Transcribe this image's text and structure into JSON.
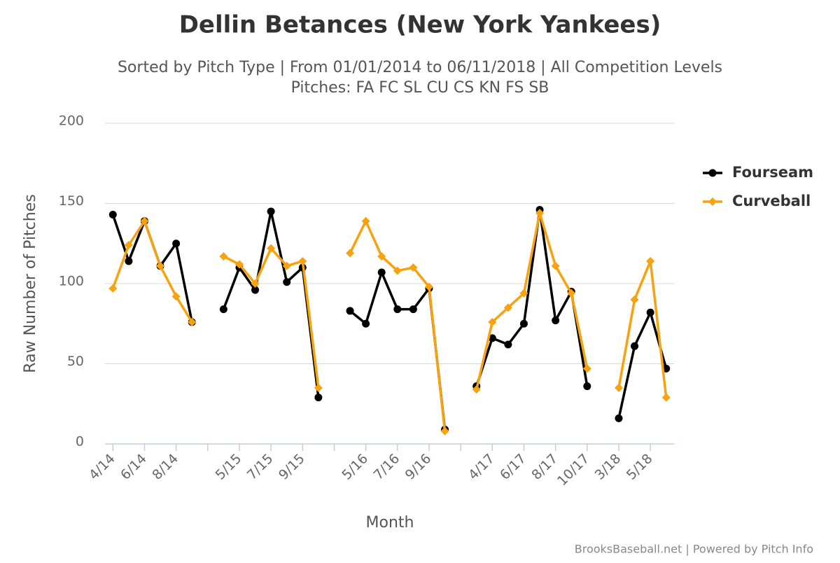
{
  "chart_data": {
    "type": "line",
    "title": "Dellin Betances (New York Yankees)",
    "subtitle": [
      "Sorted by Pitch Type | From 01/01/2014 to 06/11/2018 | All Competition Levels",
      "Pitches: FA FC SL CU CS KN FS SB"
    ],
    "x_label": "Month",
    "y_label": "Raw Number of Pitches",
    "credits": "BrooksBaseball.net | Powered by Pitch Info",
    "categories": [
      "4/14",
      null,
      "6/14",
      null,
      "8/14",
      null,
      null,
      null,
      "5/15",
      null,
      "7/15",
      null,
      "9/15",
      null,
      null,
      null,
      "5/16",
      null,
      "7/16",
      null,
      "9/16",
      null,
      null,
      null,
      "4/17",
      null,
      "6/17",
      null,
      "8/17",
      null,
      "10/17",
      null,
      "3/18",
      null,
      "5/18",
      null
    ],
    "series": [
      {
        "name": "Fourseam",
        "color": "#000000",
        "marker": "circle",
        "values": [
          143,
          114,
          139,
          111,
          125,
          76,
          null,
          84,
          110,
          96,
          145,
          101,
          110,
          29,
          null,
          83,
          75,
          107,
          84,
          84,
          97,
          9,
          null,
          36,
          66,
          62,
          75,
          146,
          77,
          95,
          36,
          null,
          16,
          61,
          82,
          47
        ]
      },
      {
        "name": "Curveball",
        "color": "#f7a20e",
        "marker": "diamond",
        "values": [
          97,
          124,
          139,
          111,
          92,
          76,
          null,
          117,
          112,
          100,
          122,
          111,
          114,
          35,
          null,
          119,
          139,
          117,
          108,
          110,
          98,
          8,
          null,
          34,
          76,
          85,
          94,
          144,
          111,
          94,
          47,
          null,
          35,
          90,
          114,
          29
        ]
      }
    ],
    "ylim": [
      0,
      200
    ],
    "yticks": [
      0,
      50,
      100,
      150,
      200
    ],
    "grid": true,
    "legend": "right"
  }
}
